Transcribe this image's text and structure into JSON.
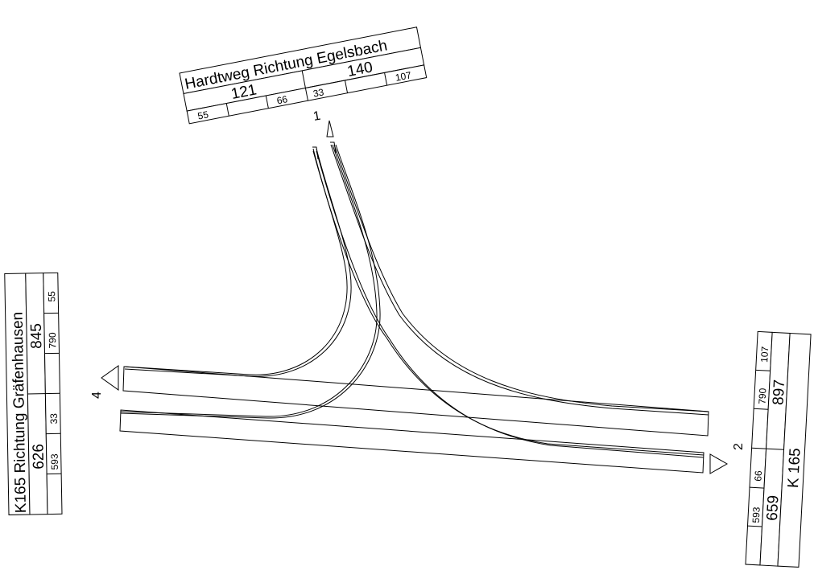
{
  "north": {
    "title": "Hardtweg Richtung Egelsbach",
    "in_total": "121",
    "out_total": "140",
    "in_left": "55",
    "in_right": "66",
    "out_left": "33",
    "out_right": "107",
    "arm_number": "1"
  },
  "west": {
    "title": "K165 Richtung Gräfenhausen",
    "in_total": "626",
    "out_total": "845",
    "in_a": "593",
    "in_b": "33",
    "out_a": "790",
    "out_b": "55",
    "arm_number": "4"
  },
  "east": {
    "title": "K 165",
    "in_total": "659",
    "out_total": "897",
    "in_a": "593",
    "in_b": "66",
    "out_a": "790",
    "out_b": "107",
    "arm_number": "2"
  }
}
